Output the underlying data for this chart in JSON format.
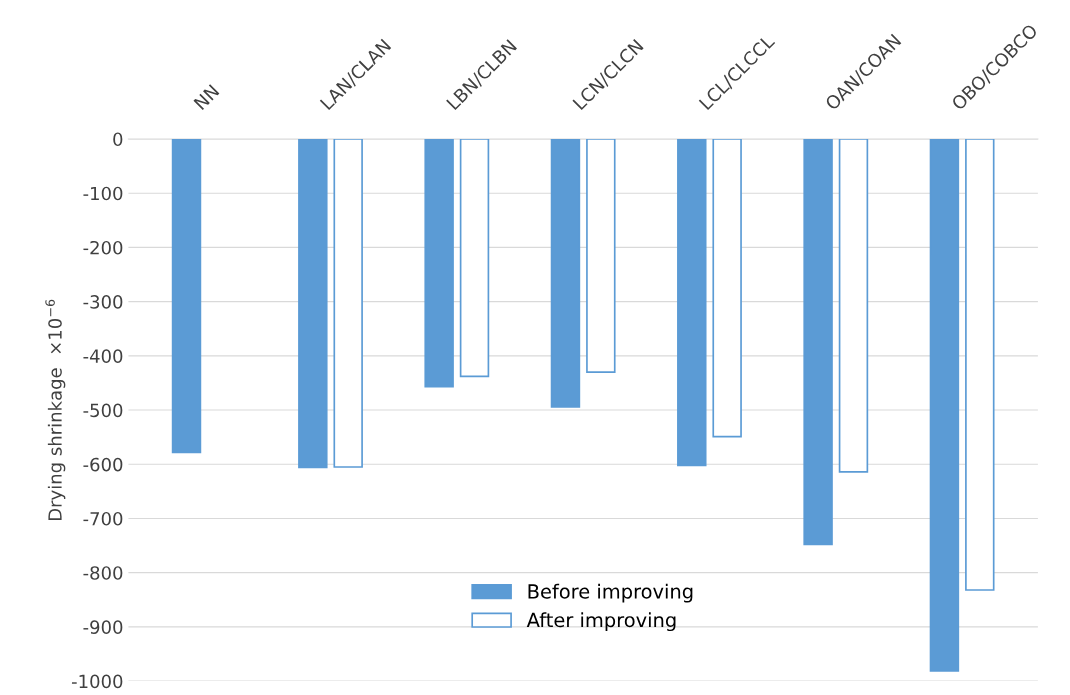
{
  "chart_data": {
    "type": "bar",
    "ylabel": "Drying shrinkage  ×10$^{−6}$",
    "categories": [
      "NN",
      "LAN/CLAN",
      "LBN/CLBN",
      "LCN/CLCN",
      "LCL/CLCCL",
      "OAN/COAN",
      "OBO/COBCO"
    ],
    "series": [
      {
        "name": "Before improving",
        "color": "#5b9bd5",
        "values": [
          -578,
          -606,
          -457,
          -494,
          -602,
          -748,
          -981
        ]
      },
      {
        "name": "After improving",
        "color": "#ffffff",
        "values": [
          null,
          -605,
          -438,
          -430,
          -549,
          -614,
          -832
        ]
      }
    ],
    "ylim": [
      -1000,
      0
    ],
    "yticks": [
      -1000,
      -900,
      -800,
      -700,
      -600,
      -500,
      -400,
      -300,
      -200,
      -100,
      0
    ],
    "grid": "y",
    "legend": "bottom"
  }
}
